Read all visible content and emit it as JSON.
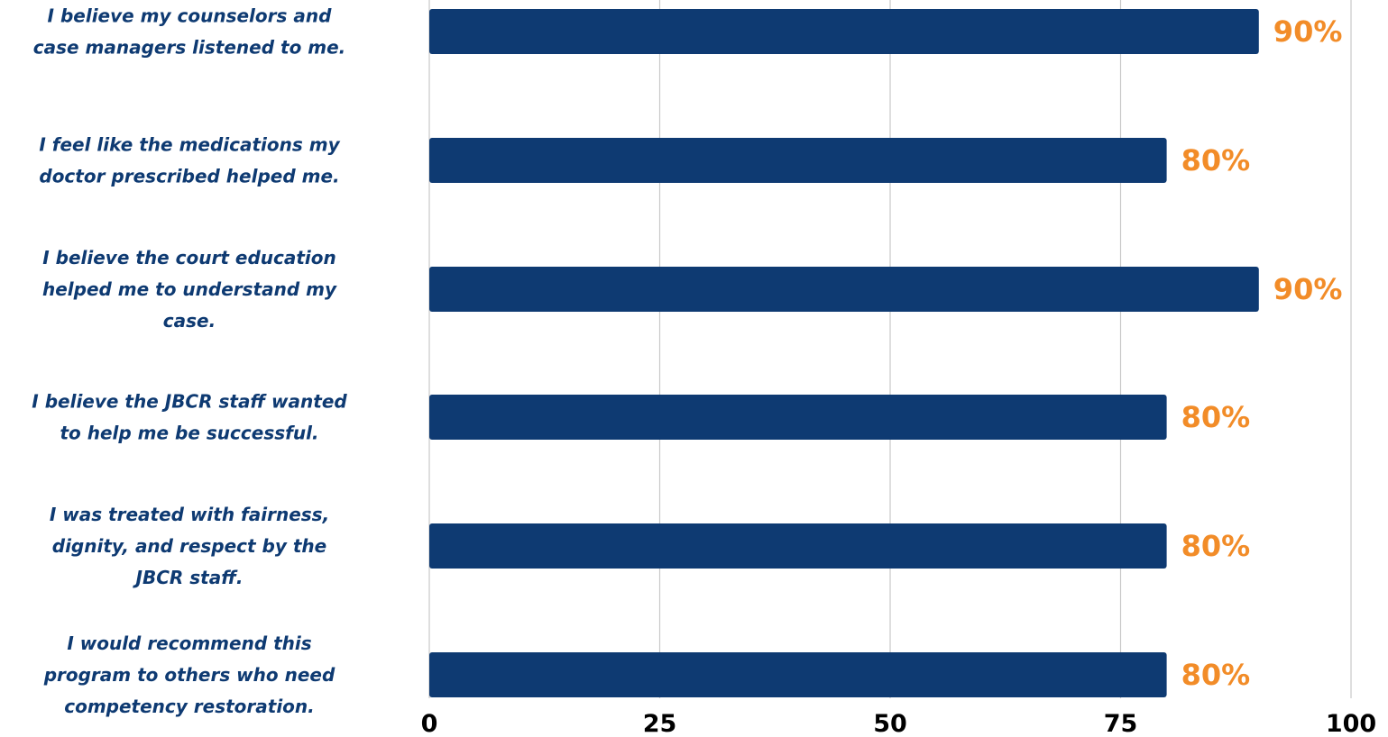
{
  "chart_data": {
    "type": "bar",
    "orientation": "horizontal",
    "categories": [
      [
        "I believe my counselors and",
        "case managers listened to me."
      ],
      [
        "I feel like the medications my",
        "doctor prescribed helped me."
      ],
      [
        "I believe the court education",
        "helped me to understand my",
        "case."
      ],
      [
        "I believe the JBCR staff wanted",
        "to help me be successful."
      ],
      [
        "I was treated with fairness,",
        "dignity, and respect by the",
        "JBCR staff."
      ],
      [
        "I would recommend this",
        "program to others who need",
        "competency restoration."
      ]
    ],
    "values": [
      90,
      80,
      90,
      80,
      80,
      80
    ],
    "value_labels": [
      "90%",
      "80%",
      "90%",
      "80%",
      "80%",
      "80%"
    ],
    "xlim": [
      0,
      100
    ],
    "xticks": [
      "0",
      "25",
      "50",
      "75",
      "100"
    ],
    "title": "",
    "xlabel": "",
    "ylabel": "",
    "grid": "vertical",
    "legend": "none",
    "colors": {
      "bar": "#0e3a72",
      "value_label": "#f28c28",
      "category_label": "#0e3a72",
      "tick_label": "#000000",
      "grid": "#c8c8c8"
    }
  }
}
